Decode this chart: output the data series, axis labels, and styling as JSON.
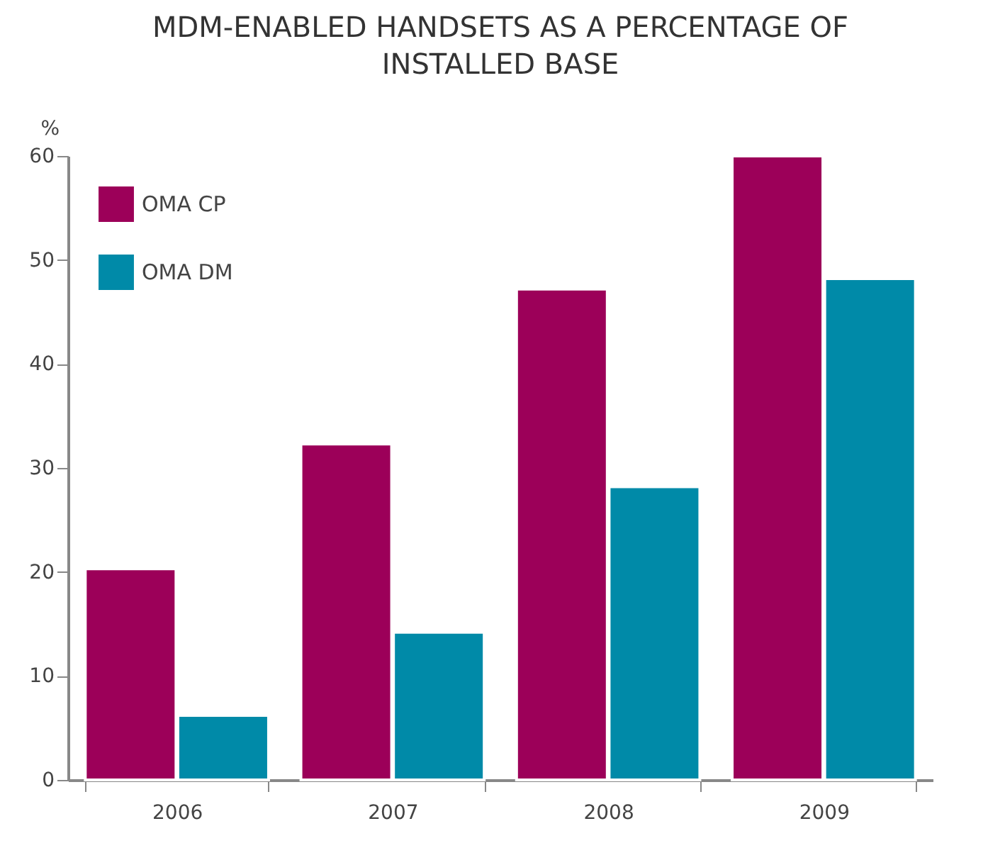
{
  "chart_data": {
    "type": "bar",
    "title": "MDM-ENABLED HANDSETS AS A PERCENTAGE OF INSTALLED BASE",
    "ylabel": "%",
    "categories": [
      "2006",
      "2007",
      "2008",
      "2009"
    ],
    "series": [
      {
        "name": "OMA CP",
        "color": "#9c0059",
        "values": [
          20.3,
          32.3,
          47.2,
          60
        ]
      },
      {
        "name": "OMA DM",
        "color": "#008aa8",
        "values": [
          6.2,
          14.2,
          28.2,
          48.2
        ]
      }
    ],
    "ylim": [
      0,
      60
    ],
    "yticks": [
      0,
      10,
      20,
      30,
      40,
      50,
      60
    ],
    "grid": false,
    "legend": "top left"
  }
}
